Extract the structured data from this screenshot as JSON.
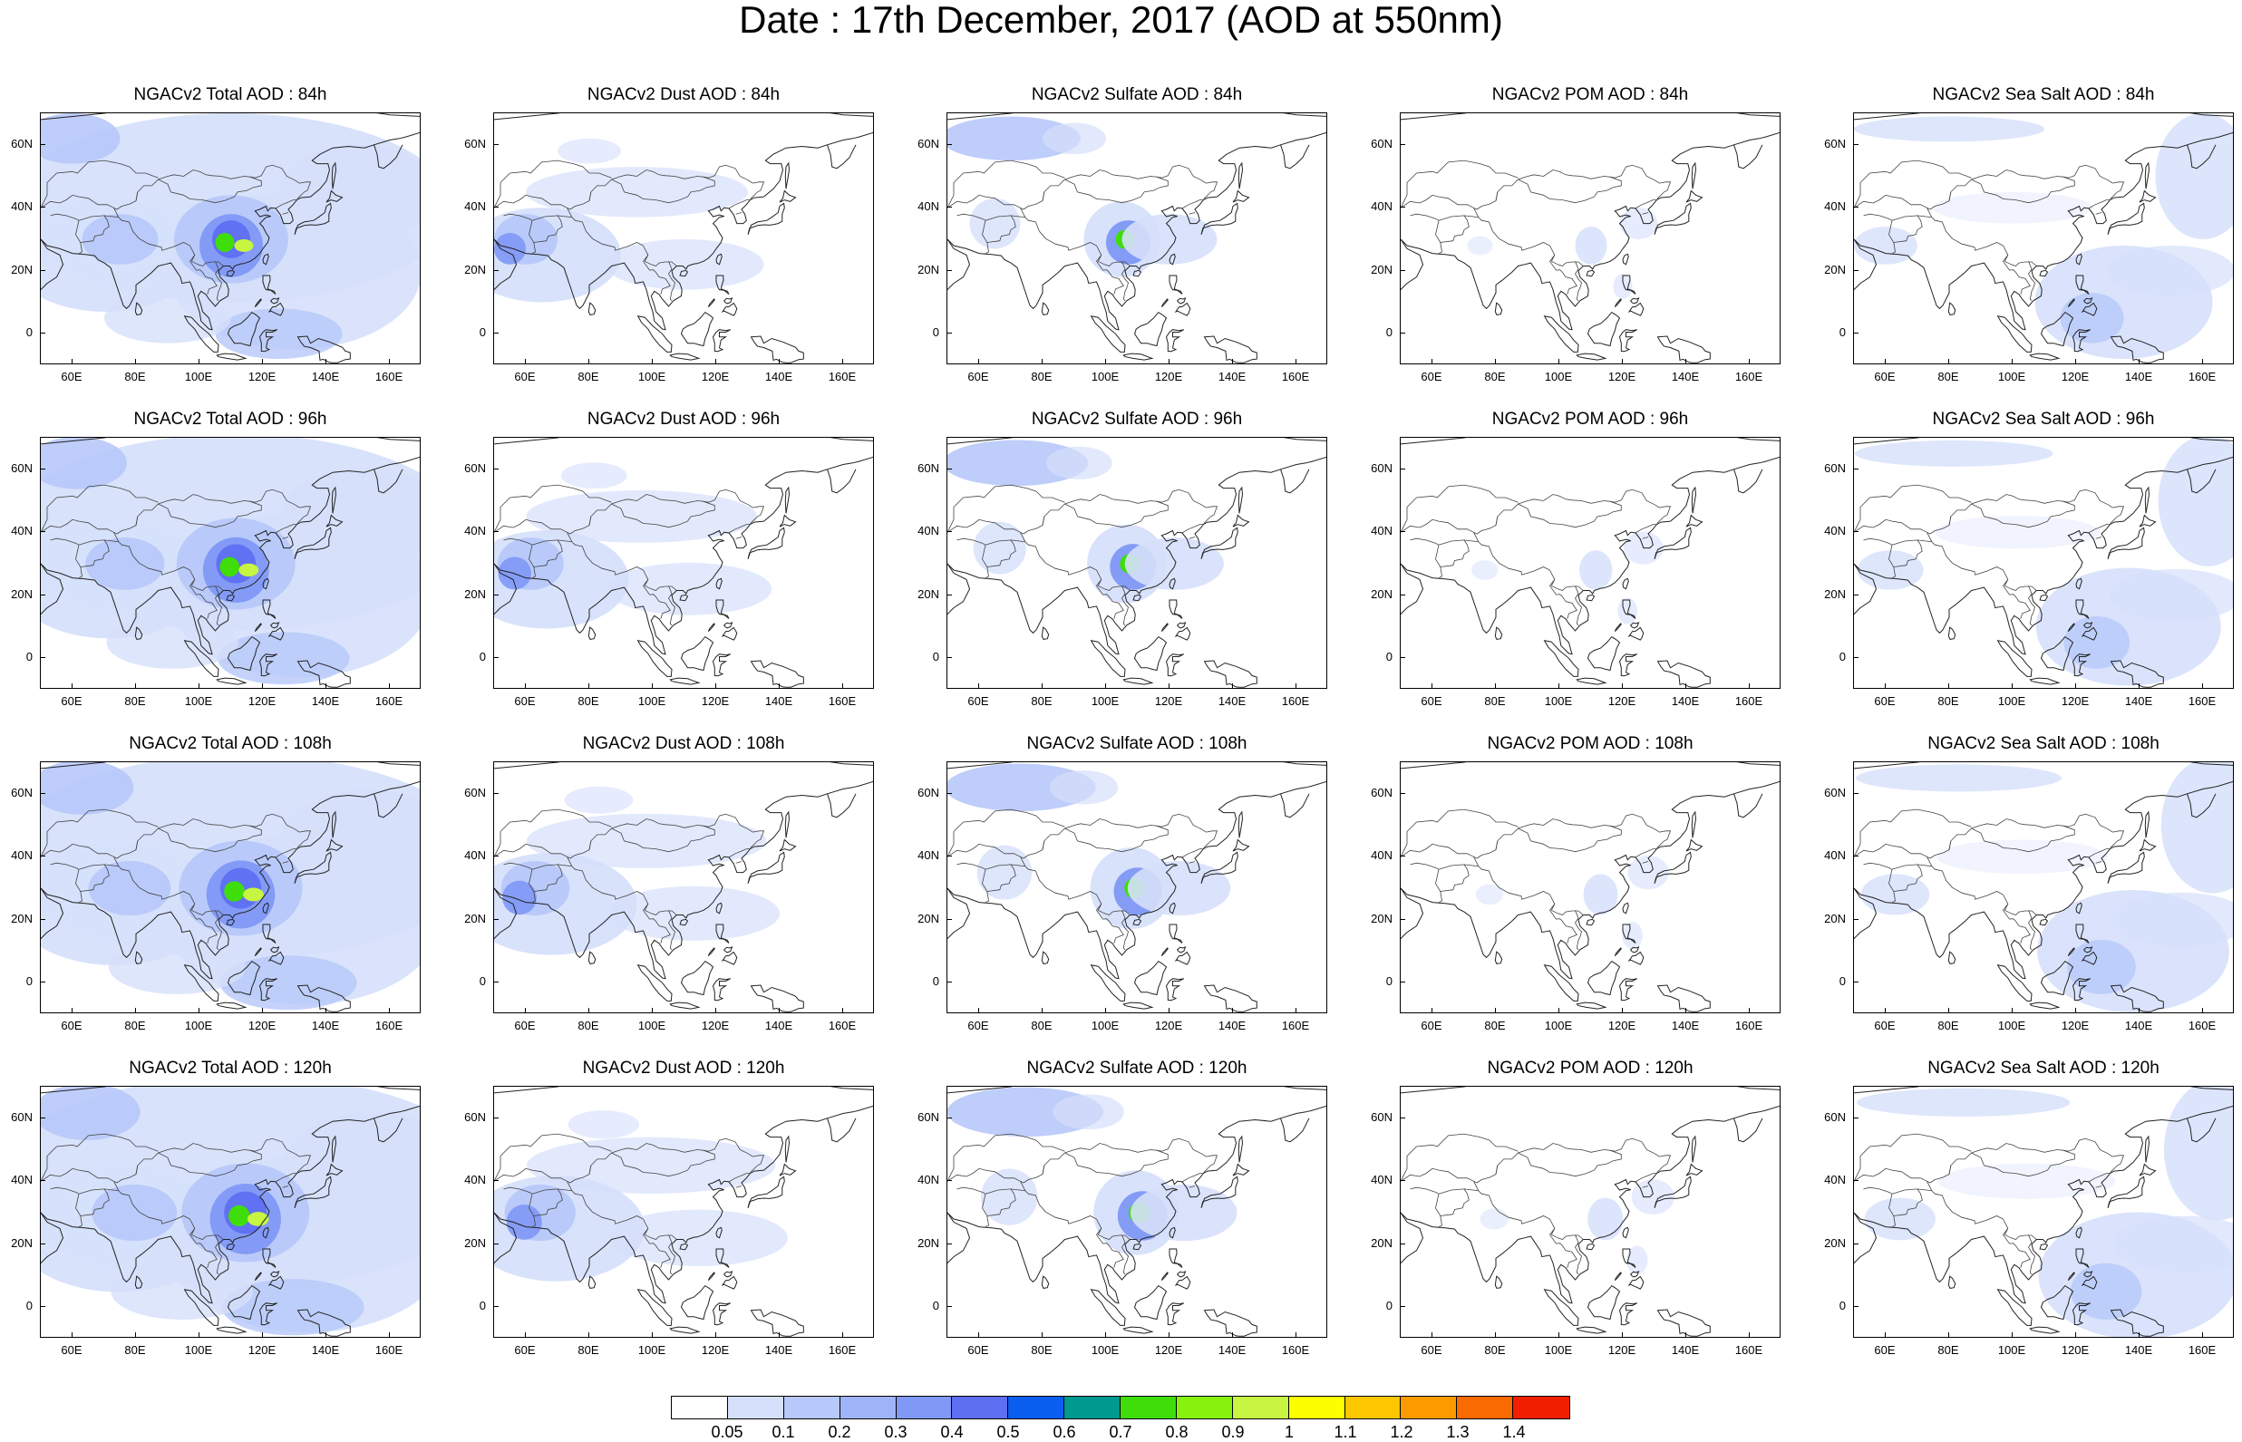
{
  "title": "Date : 17th December, 2017 (AOD at 550nm)",
  "axes": {
    "lat_ticks": [
      "60N",
      "40N",
      "20N",
      "0"
    ],
    "lat_values": [
      60,
      40,
      20,
      0
    ],
    "lon_ticks": [
      "60E",
      "80E",
      "100E",
      "120E",
      "140E",
      "160E"
    ],
    "lon_values": [
      60,
      80,
      100,
      120,
      140,
      160
    ],
    "lat_range": [
      -10,
      70
    ],
    "lon_range": [
      50,
      170
    ]
  },
  "panels": [
    [
      "NGACv2 Total AOD : 84h",
      "NGACv2 Dust AOD : 84h",
      "NGACv2 Sulfate AOD : 84h",
      "NGACv2 POM AOD : 84h",
      "NGACv2 Sea Salt AOD : 84h"
    ],
    [
      "NGACv2 Total AOD : 96h",
      "NGACv2 Dust AOD : 96h",
      "NGACv2 Sulfate AOD : 96h",
      "NGACv2 POM AOD : 96h",
      "NGACv2 Sea Salt AOD : 96h"
    ],
    [
      "NGACv2 Total AOD : 108h",
      "NGACv2 Dust AOD : 108h",
      "NGACv2 Sulfate AOD : 108h",
      "NGACv2 POM AOD : 108h",
      "NGACv2 Sea Salt AOD : 108h"
    ],
    [
      "NGACv2 Total AOD : 120h",
      "NGACv2 Dust AOD : 120h",
      "NGACv2 Sulfate AOD : 120h",
      "NGACv2 POM AOD : 120h",
      "NGACv2 Sea Salt  AOD : 120h"
    ]
  ],
  "colorbar": {
    "labels": [
      "0.05",
      "0.1",
      "0.2",
      "0.3",
      "0.4",
      "0.5",
      "0.6",
      "0.7",
      "0.8",
      "0.9",
      "1",
      "1.1",
      "1.2",
      "1.3",
      "1.4"
    ],
    "colors": [
      "#ffffff",
      "#d6e0fb",
      "#b7c8fa",
      "#9fb3f8",
      "#8098f6",
      "#5e6ff2",
      "#0a5ef0",
      "#00998f",
      "#3fdd0a",
      "#88f20f",
      "#c8f542",
      "#fcff00",
      "#fcc600",
      "#fb9b00",
      "#f96b00",
      "#f21e00"
    ]
  },
  "fill_colors": {
    "light": "#d6e0fb",
    "medium": "#b7c8fa",
    "strong": "#9fb3f8",
    "deep": "#8098f6",
    "core": "#5e6ff2",
    "teal": "#00998f",
    "green": "#3fdd0a",
    "lime": "#c8f542"
  }
}
